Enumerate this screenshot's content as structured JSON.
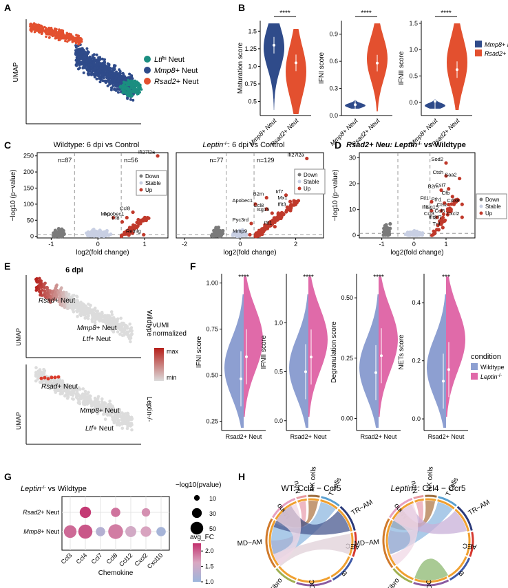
{
  "panels": {
    "A": "A",
    "B": "B",
    "C": "C",
    "D": "D",
    "E": "E",
    "F": "F",
    "G": "G",
    "H": "H"
  },
  "colors": {
    "mmp8": "#2f4b8a",
    "rsad2": "#e3502f",
    "ltf": "#1b8e80",
    "wildtype": "#8d9fd1",
    "leptin": "#e06aa9",
    "down": "#7a7a7a",
    "stable": "#c8cfe3",
    "up": "#c0392b"
  },
  "chart_data": [
    {
      "id": "A",
      "type": "scatter",
      "ylabel": "UMAP",
      "legend": [
        {
          "pre": "",
          "italic": "Ltf",
          "sup": "hi",
          "post": " Neut",
          "color": "#1b8e80"
        },
        {
          "pre": "",
          "italic": "Mmp8",
          "sup": "",
          "post": "+ Neut",
          "color": "#2f4b8a"
        },
        {
          "pre": "",
          "italic": "Rsad2",
          "sup": "",
          "post": "+ Neut",
          "color": "#e3502f"
        }
      ]
    },
    {
      "id": "B",
      "type": "violin",
      "significance": "****",
      "categories": [
        "Mmp8+ Neut",
        "Rsad2+ Neut"
      ],
      "legend": [
        "Mmp8+ Neut",
        "Rsad2+ Neut"
      ],
      "plots": [
        {
          "ylabel": "Maturation score",
          "ylim": [
            0.3,
            1.65
          ],
          "ticks": [
            0.5,
            0.75,
            1.0,
            1.25,
            1.5
          ],
          "tick_labels": [
            "0.5",
            "0.75",
            "1.0",
            "1.25",
            "1.5"
          ],
          "medians": [
            1.3,
            1.05
          ]
        },
        {
          "ylabel": "IFNI score",
          "ylim": [
            0.0,
            1.05
          ],
          "ticks": [
            0.0,
            0.3,
            0.6,
            0.9
          ],
          "tick_labels": [
            "0.0",
            "0.3",
            "0.6",
            "0.9"
          ],
          "medians": [
            0.12,
            0.58
          ]
        },
        {
          "ylabel": "IFNII score",
          "ylim": [
            -0.25,
            1.55
          ],
          "ticks": [
            0.0,
            0.5,
            1.0,
            1.5
          ],
          "tick_labels": [
            "0.0",
            "0.5",
            "1.0",
            "1.5"
          ],
          "medians": [
            0.02,
            0.62
          ]
        }
      ]
    },
    {
      "id": "C1",
      "type": "scatter",
      "title": "Wildtype: 6 dpi vs Control",
      "xlabel": "log2(fold change)",
      "ylabel": "−log10 (p−value)",
      "xlim": [
        -1.3,
        1.5
      ],
      "ylim": [
        -5,
        260
      ],
      "xticks": [
        -1,
        0,
        1
      ],
      "yticks": [
        0,
        50,
        100,
        150,
        200,
        250
      ],
      "n_down": "n=87",
      "n_up": "n=56",
      "legend": [
        "Down",
        "Stable",
        "Up"
      ],
      "labels": [
        {
          "t": "Ifi27l2a",
          "x": 1.28,
          "y": 250
        },
        {
          "t": "Ccl8",
          "x": 0.75,
          "y": 75
        },
        {
          "t": "Mx1",
          "x": 0.33,
          "y": 58
        },
        {
          "t": "Apobec1",
          "x": 0.62,
          "y": 58
        },
        {
          "t": "Irf8",
          "x": 0.52,
          "y": 45
        },
        {
          "t": "Retnlg",
          "x": 0.98,
          "y": 5
        }
      ]
    },
    {
      "id": "C2",
      "type": "scatter",
      "title_pre": "Leptin",
      "title_sup": "-/-",
      "title_post": ": 6 dpi vs Control",
      "xlabel": "log2(fold change)",
      "xlim": [
        -2.3,
        3.0
      ],
      "ylim": [
        -5,
        260
      ],
      "xticks": [
        -2,
        0,
        2
      ],
      "yticks": [
        0,
        50,
        100,
        150,
        200,
        250
      ],
      "n_down": "n=77",
      "n_up": "n=129",
      "legend": [
        "Down",
        "Stable",
        "Up"
      ],
      "labels": [
        {
          "t": "Ifi27l2a",
          "x": 2.4,
          "y": 242
        },
        {
          "t": "B2m",
          "x": 0.95,
          "y": 120
        },
        {
          "t": "Irf7",
          "x": 1.65,
          "y": 128
        },
        {
          "t": "Mx1",
          "x": 1.8,
          "y": 108
        },
        {
          "t": "Apobec1",
          "x": 0.55,
          "y": 100
        },
        {
          "t": "Ifit3",
          "x": 1.75,
          "y": 88
        },
        {
          "t": "Ccl8",
          "x": 0.95,
          "y": 85
        },
        {
          "t": "Isg15",
          "x": 1.15,
          "y": 72
        },
        {
          "t": "Pyc3rd",
          "x": 0.4,
          "y": 40
        },
        {
          "t": "Ifit1",
          "x": 1.25,
          "y": 30
        },
        {
          "t": "Mmp9",
          "x": 0.35,
          "y": 5
        }
      ]
    },
    {
      "id": "D",
      "type": "scatter",
      "title_pre": "Rsad2+ Neu: ",
      "title_italic": "Leptin",
      "title_sup": "-/-",
      "title_post": " vs Wildtype",
      "xlabel": "log2(fold change)",
      "ylabel": "−log10 (p−value)",
      "xlim": [
        -1.7,
        1.9
      ],
      "ylim": [
        -1,
        32
      ],
      "xticks": [
        -1,
        0,
        1
      ],
      "yticks": [
        0,
        10,
        20,
        30
      ],
      "legend": [
        "Down",
        "Stable",
        "Up"
      ],
      "labels": [
        {
          "t": "Sod2",
          "x": 1.0,
          "y": 28
        },
        {
          "t": "Ctsh",
          "x": 1.0,
          "y": 23
        },
        {
          "t": "Saa2",
          "x": 1.42,
          "y": 22
        },
        {
          "t": "Cst7",
          "x": 1.08,
          "y": 18
        },
        {
          "t": "B2m",
          "x": 0.85,
          "y": 17.5
        },
        {
          "t": "Cfb",
          "x": 1.2,
          "y": 15
        },
        {
          "t": "Cd38",
          "x": 1.5,
          "y": 12
        },
        {
          "t": "Fth1",
          "x": 0.95,
          "y": 12.5
        },
        {
          "t": "Ftl1",
          "x": 0.55,
          "y": 13
        },
        {
          "t": "Ctsz",
          "x": 1.12,
          "y": 10.5
        },
        {
          "t": "Ifi1",
          "x": 0.55,
          "y": 9.5
        },
        {
          "t": "Isg15",
          "x": 0.85,
          "y": 9.5
        },
        {
          "t": "Ccl5",
          "x": 1.05,
          "y": 8
        },
        {
          "t": "Cxcl2",
          "x": 1.5,
          "y": 7
        },
        {
          "t": "Ccl3",
          "x": 0.72,
          "y": 7
        },
        {
          "t": "Ifit3",
          "x": 0.8,
          "y": 5.5
        },
        {
          "t": "Irf7",
          "x": 0.95,
          "y": 5.5
        },
        {
          "t": "Tnf",
          "x": 0.9,
          "y": 3
        }
      ]
    },
    {
      "id": "E",
      "type": "scatter",
      "title": "6 dpi",
      "ylabel": "UMAP",
      "rows": [
        "Wildtype",
        "Leptin-/-"
      ],
      "labels_top": [
        {
          "pre": "",
          "italic": "Rsad",
          "post": "+ Neut"
        },
        {
          "pre": "",
          "italic": "Mmp8",
          "post": "+ Neut"
        },
        {
          "pre": "",
          "italic": "Ltf",
          "post": "+ Neut"
        }
      ],
      "labels_bottom": [
        {
          "pre": "",
          "italic": "Rsad",
          "post": "+ Neut"
        },
        {
          "pre": "",
          "italic": "Mmp8",
          "post": "+ Neut"
        },
        {
          "pre": "",
          "italic": "Ltf",
          "post": "+ Neut"
        }
      ],
      "colorbar_title": [
        "vUMI",
        "normalized"
      ],
      "colorbar_max": "max",
      "colorbar_min": "min"
    },
    {
      "id": "F",
      "type": "violin",
      "category": "Rsad2+ Neut",
      "legend_title": "condition",
      "legend": [
        "Wildtype",
        "Leptin-/-"
      ],
      "plots": [
        {
          "ylabel": "IFNI score",
          "sig": "****",
          "ylim": [
            0.2,
            1.05
          ],
          "ticks": [
            0.25,
            0.5,
            0.75,
            1.0
          ],
          "tick_labels": [
            "0.25",
            "0.50",
            "0.75",
            "1.00"
          ],
          "medians": [
            0.48,
            0.6
          ]
        },
        {
          "ylabel": "IFNII score",
          "sig": "****",
          "ylim": [
            -0.1,
            1.5
          ],
          "ticks": [
            0.0,
            0.5,
            1.0
          ],
          "tick_labels": [
            "0.0",
            "0.5",
            "1.0"
          ],
          "medians": [
            0.5,
            0.65
          ]
        },
        {
          "ylabel": "Degranulation score",
          "sig": "****",
          "ylim": [
            -0.05,
            0.6
          ],
          "ticks": [
            0.0,
            0.25,
            0.5
          ],
          "tick_labels": [
            "0.00",
            "0.25",
            "0.50"
          ],
          "medians": [
            0.19,
            0.26
          ]
        },
        {
          "ylabel": "NETs score",
          "sig": "***",
          "ylim": [
            -0.04,
            0.5
          ],
          "ticks": [
            0.0,
            0.2,
            0.4
          ],
          "tick_labels": [
            "0.0",
            "0.2",
            "0.4"
          ],
          "medians": [
            0.13,
            0.17
          ]
        }
      ]
    },
    {
      "id": "G",
      "type": "scatter",
      "title_italic": "Leptin",
      "title_sup": "-/-",
      "title_post": " vs Wildtype",
      "xlabel": "Chemokine",
      "categories": [
        "Ccl3",
        "Ccl4",
        "Ccl7",
        "Ccl8",
        "Ccl12",
        "Cxcl2",
        "Cxcl10"
      ],
      "rows": [
        "Rsad2+ Neut",
        "Mmp8+ Neut"
      ],
      "points": [
        {
          "row": "Rsad2+ Neut",
          "cat": "Ccl4",
          "size": 32,
          "fc": 2.2
        },
        {
          "row": "Rsad2+ Neut",
          "cat": "Ccl8",
          "size": 22,
          "fc": 1.9
        },
        {
          "row": "Rsad2+ Neut",
          "cat": "Cxcl2",
          "size": 18,
          "fc": 1.75
        },
        {
          "row": "Mmp8+ Neut",
          "cat": "Ccl3",
          "size": 40,
          "fc": 1.95
        },
        {
          "row": "Mmp8+ Neut",
          "cat": "Ccl4",
          "size": 50,
          "fc": 2.05
        },
        {
          "row": "Mmp8+ Neut",
          "cat": "Ccl7",
          "size": 22,
          "fc": 1.25
        },
        {
          "row": "Mmp8+ Neut",
          "cat": "Ccl8",
          "size": 55,
          "fc": 1.85
        },
        {
          "row": "Mmp8+ Neut",
          "cat": "Ccl12",
          "size": 30,
          "fc": 1.55
        },
        {
          "row": "Mmp8+ Neut",
          "cat": "Cxcl2",
          "size": 28,
          "fc": 1.65
        },
        {
          "row": "Mmp8+ Neut",
          "cat": "Cxcl10",
          "size": 22,
          "fc": 1.1
        }
      ],
      "size_title": "−log10(pvalue)",
      "size_legend": [
        10,
        30,
        50
      ],
      "color_title": "avg_FC",
      "color_ticks": [
        1.0,
        1.5,
        2.0
      ],
      "color_tick_labels": [
        "1.0",
        "1.5",
        "2.0"
      ]
    },
    {
      "id": "H",
      "type": "diagram",
      "title_left": "WT: Ccl4  − Ccr5",
      "title_right_italic": "Leptin",
      "title_right_sup": "-/-",
      "title_right_post": ": Ccl4  − Ccr5",
      "sectors": [
        "Neu",
        "NK cells",
        "T cells",
        "TR−AM",
        "AEC",
        "B",
        "DC",
        "Fibro",
        "MD−AM",
        "Mono"
      ]
    }
  ]
}
